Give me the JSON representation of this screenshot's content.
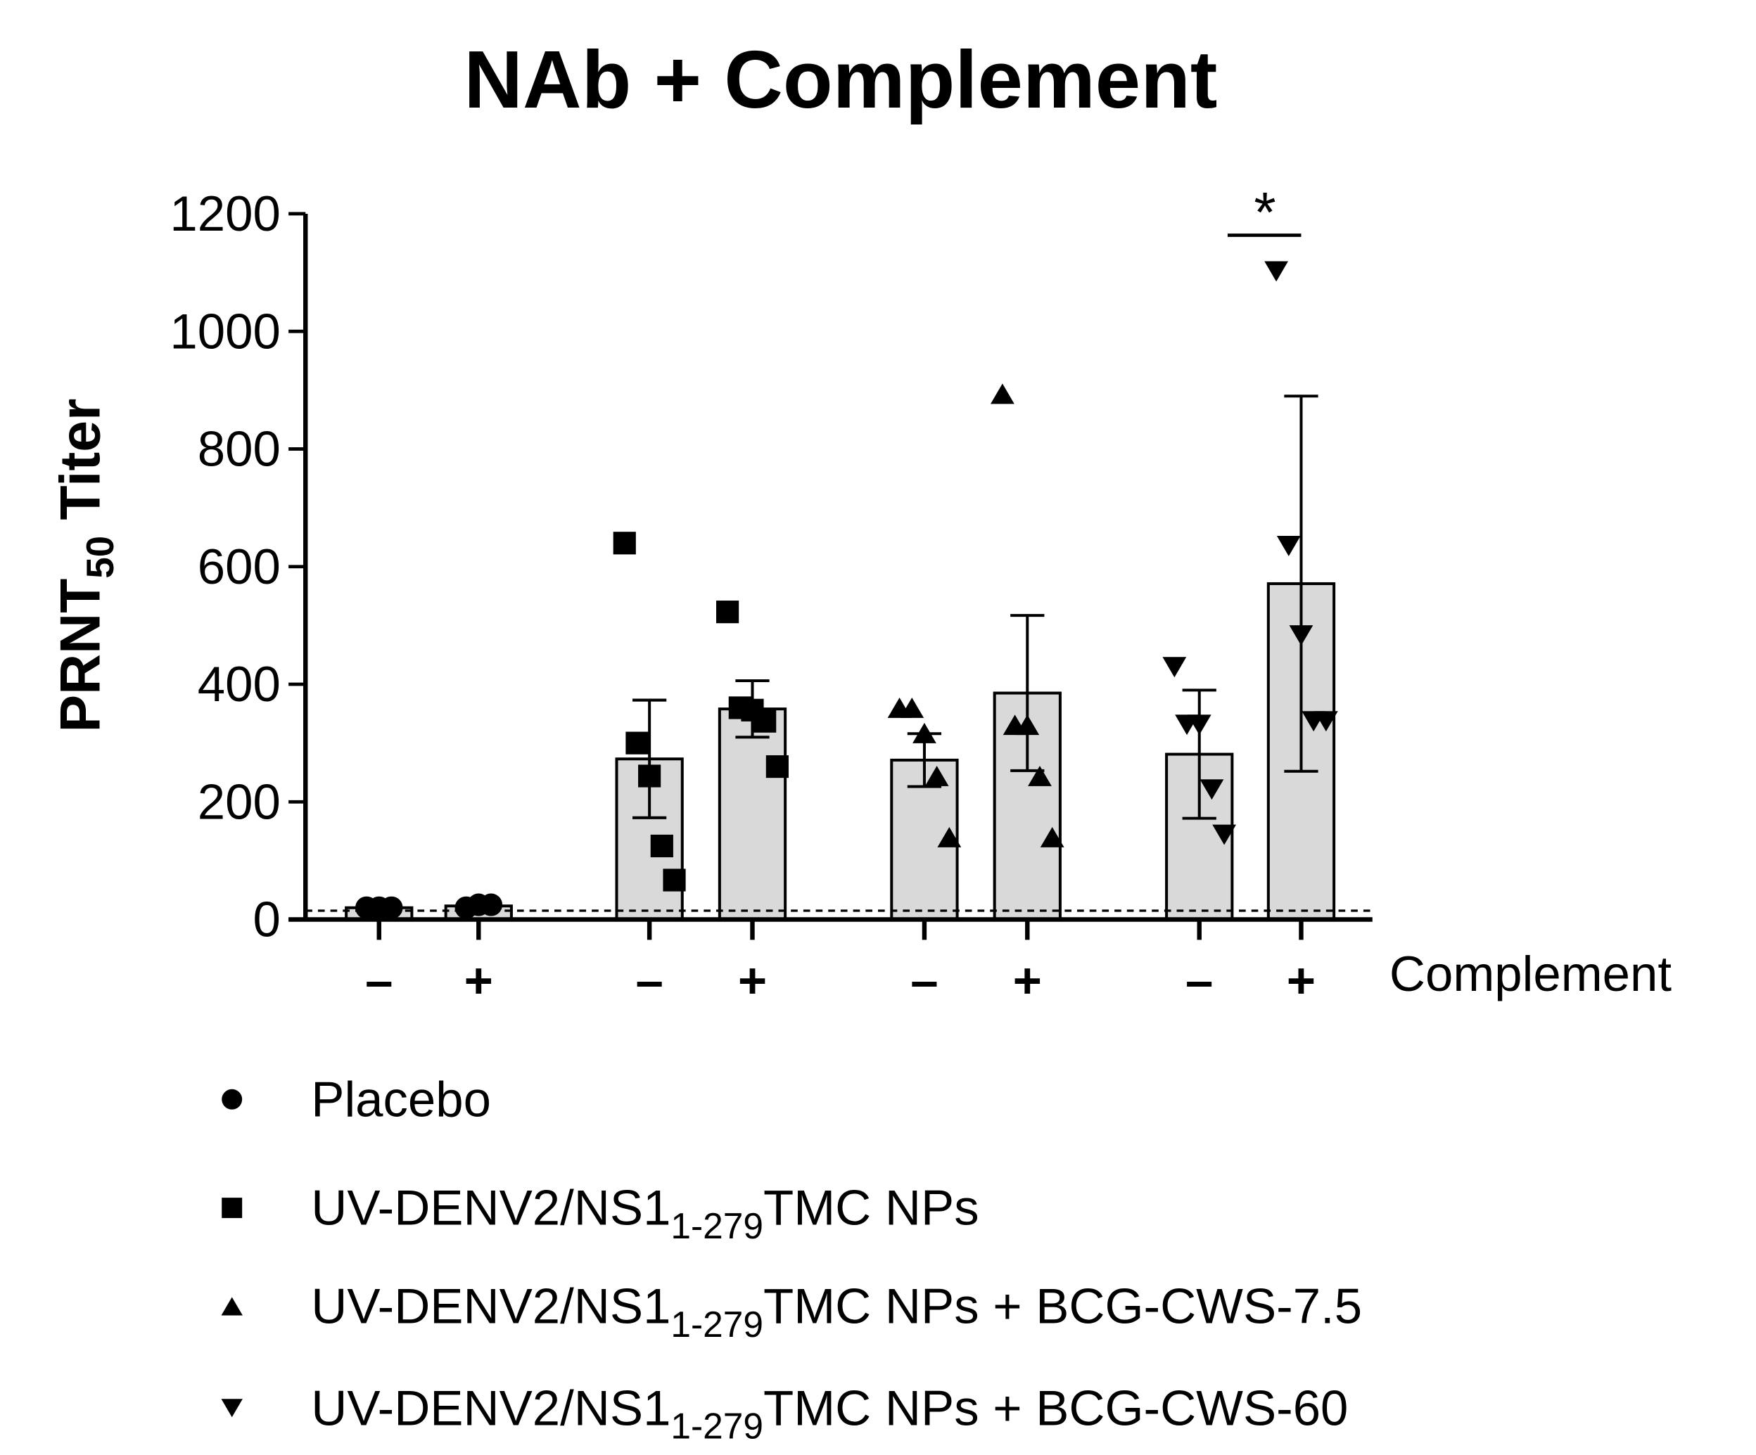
{
  "chart_data": {
    "type": "bar",
    "title": "NAb + Complement",
    "ylabel": {
      "main": "PRNT",
      "sub": "50",
      "rest": " Titer"
    },
    "xlabel": "Complement",
    "categories": [
      "–",
      "+",
      "–",
      "+",
      "–",
      "+",
      "–",
      "+"
    ],
    "ylim": [
      0,
      1200
    ],
    "yticks": [
      0,
      200,
      400,
      600,
      800,
      1000,
      1200
    ],
    "reference_line": 15,
    "bar_color": "#d9d9d9",
    "annotations": [
      {
        "text": "*"
      }
    ],
    "series": [
      {
        "name": [
          "Placebo"
        ],
        "marker": "circle",
        "values": [
          20,
          23,
          null,
          null,
          null,
          null,
          null,
          null
        ],
        "errors": [
          1,
          2,
          null,
          null,
          null,
          null,
          null,
          null
        ],
        "points": [
          [
            20,
            20,
            20
          ],
          [
            20,
            25,
            25
          ],
          null,
          null,
          null,
          null,
          null,
          null
        ]
      },
      {
        "name": [
          "UV-DENV2/NS1",
          "1-279",
          "TMC NPs"
        ],
        "marker": "square",
        "values": [
          null,
          null,
          273,
          358,
          null,
          null,
          null,
          null
        ],
        "errors": [
          null,
          null,
          100,
          48,
          null,
          null,
          null,
          null
        ],
        "points": [
          null,
          null,
          [
            640,
            300,
            244,
            125,
            67
          ],
          [
            523,
            360,
            356,
            337,
            260
          ],
          null,
          null,
          null,
          null
        ]
      },
      {
        "name": [
          "UV-DENV2/NS1",
          "1-279",
          "TMC NPs + BCG-CWS-7.5"
        ],
        "marker": "triangle-up",
        "values": [
          null,
          null,
          null,
          null,
          271,
          385,
          null,
          null
        ],
        "errors": [
          null,
          null,
          null,
          null,
          45,
          132,
          null,
          null
        ],
        "points": [
          null,
          null,
          null,
          null,
          [
            360,
            360,
            317,
            244,
            140
          ],
          [
            894,
            331,
            331,
            244,
            140
          ],
          null,
          null
        ]
      },
      {
        "name": [
          "UV-DENV2/NS1",
          "1-279",
          "TMC NPs + BCG-CWS-60"
        ],
        "marker": "triangle-down",
        "values": [
          null,
          null,
          null,
          null,
          null,
          null,
          281,
          571
        ],
        "errors": [
          null,
          null,
          null,
          null,
          null,
          null,
          109,
          319
        ],
        "points": [
          null,
          null,
          null,
          null,
          null,
          null,
          [
            429,
            331,
            331,
            221,
            144
          ],
          [
            1102,
            635,
            483,
            337,
            337
          ]
        ]
      }
    ]
  }
}
